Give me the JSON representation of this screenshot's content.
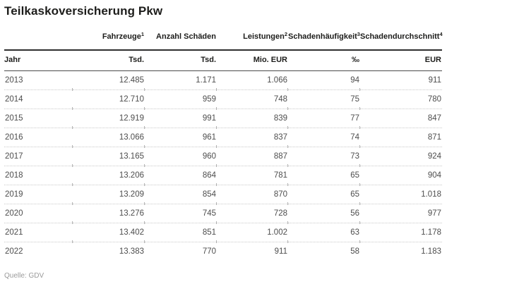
{
  "title": "Teilkaskoversicherung Pkw",
  "chart_data": {
    "type": "table",
    "title": "Teilkaskoversicherung Pkw",
    "columns": [
      "Jahr",
      "Fahrzeuge¹ (Tsd.)",
      "Anzahl Schäden (Tsd.)",
      "Leistungen² (Mio. EUR)",
      "Schadenhäufigkeit³ (‰)",
      "Schadendurchschnitt⁴ (EUR)"
    ],
    "rows": [
      [
        "2013",
        "12.485",
        "1.171",
        "1.066",
        "94",
        "911"
      ],
      [
        "2014",
        "12.710",
        "959",
        "748",
        "75",
        "780"
      ],
      [
        "2015",
        "12.919",
        "991",
        "839",
        "77",
        "847"
      ],
      [
        "2016",
        "13.066",
        "961",
        "837",
        "74",
        "871"
      ],
      [
        "2017",
        "13.165",
        "960",
        "887",
        "73",
        "924"
      ],
      [
        "2018",
        "13.206",
        "864",
        "781",
        "65",
        "904"
      ],
      [
        "2019",
        "13.209",
        "854",
        "870",
        "65",
        "1.018"
      ],
      [
        "2020",
        "13.276",
        "745",
        "728",
        "56",
        "977"
      ],
      [
        "2021",
        "13.402",
        "851",
        "1.002",
        "63",
        "1.178"
      ],
      [
        "2022",
        "13.383",
        "770",
        "911",
        "58",
        "1.183"
      ]
    ],
    "source": "Quelle: GDV"
  },
  "table": {
    "group_headers": [
      {
        "label": "",
        "sup": ""
      },
      {
        "label": "Fahrzeuge",
        "sup": "1"
      },
      {
        "label": "Anzahl Schäden",
        "sup": ""
      },
      {
        "label": "Leistungen",
        "sup": "2"
      },
      {
        "label": "Schadenhäufigkeit",
        "sup": "3"
      },
      {
        "label": "Schadendurchschnitt",
        "sup": "4"
      }
    ],
    "unit_headers": [
      "Jahr",
      "Tsd.",
      "Tsd.",
      "Mio. EUR",
      "‰",
      "EUR"
    ],
    "rows": [
      [
        "2013",
        "12.485",
        "1.171",
        "1.066",
        "94",
        "911"
      ],
      [
        "2014",
        "12.710",
        "959",
        "748",
        "75",
        "780"
      ],
      [
        "2015",
        "12.919",
        "991",
        "839",
        "77",
        "847"
      ],
      [
        "2016",
        "13.066",
        "961",
        "837",
        "74",
        "871"
      ],
      [
        "2017",
        "13.165",
        "960",
        "887",
        "73",
        "924"
      ],
      [
        "2018",
        "13.206",
        "864",
        "781",
        "65",
        "904"
      ],
      [
        "2019",
        "13.209",
        "854",
        "870",
        "65",
        "1.018"
      ],
      [
        "2020",
        "13.276",
        "745",
        "728",
        "56",
        "977"
      ],
      [
        "2021",
        "13.402",
        "851",
        "1.002",
        "63",
        "1.178"
      ],
      [
        "2022",
        "13.383",
        "770",
        "911",
        "58",
        "1.183"
      ]
    ]
  },
  "footer": {
    "source": "Quelle: GDV"
  },
  "colors": {
    "heading_text": "#1d1d1b",
    "data_text": "#4d4d4d",
    "rule_heavy": "#2e2e2e",
    "rule_medium": "#4a4a4a",
    "row_separator": "#c9c9c9",
    "source_text": "#9a9a9a",
    "background": "#ffffff"
  }
}
